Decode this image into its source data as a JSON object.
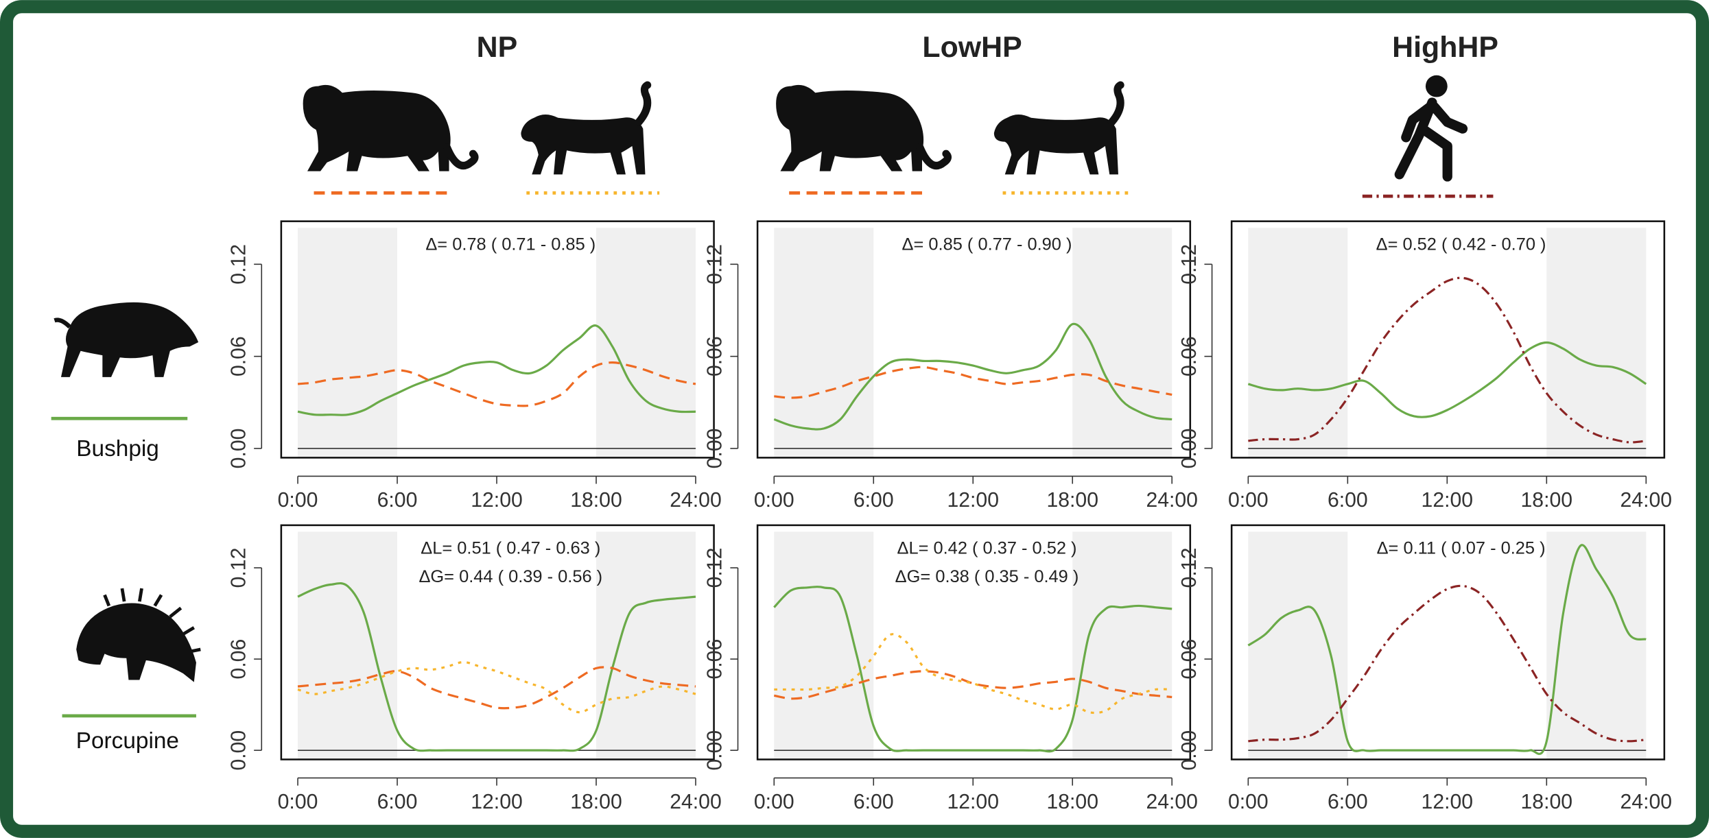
{
  "columns": [
    "NP",
    "LowHP",
    "HighHP"
  ],
  "rows": [
    "Bushpig",
    "Porcupine"
  ],
  "chart_data": [
    {
      "type": "line",
      "x": [
        0,
        1,
        2,
        3,
        4,
        5,
        6,
        7,
        8,
        9,
        10,
        11,
        12,
        13,
        14,
        15,
        16,
        17,
        18,
        19,
        20,
        21,
        22,
        23,
        24
      ],
      "xlim": [
        -1,
        25.1
      ],
      "ylim": [
        -0.006,
        0.148
      ],
      "xticks": [
        {
          "value": 0,
          "label": "0:00"
        },
        {
          "value": 6,
          "label": "6:00"
        },
        {
          "value": 12,
          "label": "12:00"
        },
        {
          "value": 18,
          "label": "18:00"
        },
        {
          "value": 24,
          "label": "24:00"
        }
      ],
      "yticks": [
        {
          "value": 0,
          "label": "0.00"
        },
        {
          "value": 0.06,
          "label": "0.06"
        },
        {
          "value": 0.12,
          "label": "0.12"
        }
      ],
      "shaded": [
        [
          0,
          6
        ],
        [
          18,
          24
        ]
      ],
      "annotations": [
        "Δ= 0.78 ( 0.71 - 0.85 )"
      ],
      "series": [
        {
          "color": "#6aaa48",
          "dash": "solid",
          "values": [
            0.024,
            0.022,
            0.022,
            0.022,
            0.025,
            0.031,
            0.036,
            0.041,
            0.045,
            0.049,
            0.054,
            0.056,
            0.056,
            0.051,
            0.049,
            0.054,
            0.064,
            0.072,
            0.08,
            0.066,
            0.044,
            0.031,
            0.026,
            0.024,
            0.024
          ]
        },
        {
          "color": "#ee6a22",
          "dash": "dashed",
          "values": [
            0.042,
            0.043,
            0.045,
            0.046,
            0.047,
            0.049,
            0.051,
            0.049,
            0.044,
            0.04,
            0.036,
            0.032,
            0.029,
            0.028,
            0.028,
            0.031,
            0.036,
            0.047,
            0.054,
            0.056,
            0.054,
            0.051,
            0.047,
            0.044,
            0.042
          ]
        }
      ]
    },
    {
      "type": "line",
      "x": [
        0,
        1,
        2,
        3,
        4,
        5,
        6,
        7,
        8,
        9,
        10,
        11,
        12,
        13,
        14,
        15,
        16,
        17,
        18,
        19,
        20,
        21,
        22,
        23,
        24
      ],
      "xlim": [
        -1,
        25.1
      ],
      "ylim": [
        -0.006,
        0.148
      ],
      "xticks": [
        {
          "value": 0,
          "label": "0:00"
        },
        {
          "value": 6,
          "label": "6:00"
        },
        {
          "value": 12,
          "label": "12:00"
        },
        {
          "value": 18,
          "label": "18:00"
        },
        {
          "value": 24,
          "label": "24:00"
        }
      ],
      "yticks": [
        {
          "value": 0,
          "label": "0.00"
        },
        {
          "value": 0.06,
          "label": "0.06"
        },
        {
          "value": 0.12,
          "label": "0.12"
        }
      ],
      "shaded": [
        [
          0,
          6
        ],
        [
          18,
          24
        ]
      ],
      "annotations": [
        "Δ= 0.85 ( 0.77 - 0.90 )"
      ],
      "series": [
        {
          "color": "#6aaa48",
          "dash": "solid",
          "values": [
            0.019,
            0.015,
            0.013,
            0.013,
            0.019,
            0.034,
            0.047,
            0.056,
            0.058,
            0.057,
            0.057,
            0.056,
            0.054,
            0.051,
            0.049,
            0.051,
            0.054,
            0.064,
            0.081,
            0.071,
            0.047,
            0.031,
            0.024,
            0.02,
            0.019
          ]
        },
        {
          "color": "#ee6a22",
          "dash": "dashed",
          "values": [
            0.034,
            0.033,
            0.034,
            0.037,
            0.04,
            0.044,
            0.047,
            0.05,
            0.052,
            0.053,
            0.051,
            0.049,
            0.046,
            0.044,
            0.042,
            0.043,
            0.044,
            0.046,
            0.048,
            0.048,
            0.044,
            0.041,
            0.039,
            0.037,
            0.035
          ]
        }
      ]
    },
    {
      "type": "line",
      "x": [
        0,
        1,
        2,
        3,
        4,
        5,
        6,
        7,
        8,
        9,
        10,
        11,
        12,
        13,
        14,
        15,
        16,
        17,
        18,
        19,
        20,
        21,
        22,
        23,
        24
      ],
      "xlim": [
        -1,
        25.1
      ],
      "ylim": [
        -0.006,
        0.148
      ],
      "xticks": [
        {
          "value": 0,
          "label": "0:00"
        },
        {
          "value": 6,
          "label": "6:00"
        },
        {
          "value": 12,
          "label": "12:00"
        },
        {
          "value": 18,
          "label": "18:00"
        },
        {
          "value": 24,
          "label": "24:00"
        }
      ],
      "yticks": [
        {
          "value": 0,
          "label": "0.00"
        },
        {
          "value": 0.06,
          "label": "0.06"
        },
        {
          "value": 0.12,
          "label": "0.12"
        }
      ],
      "shaded": [
        [
          0,
          6
        ],
        [
          18,
          24
        ]
      ],
      "annotations": [
        "Δ= 0.52 ( 0.42 - 0.70 )"
      ],
      "series": [
        {
          "color": "#6aaa48",
          "dash": "solid",
          "values": [
            0.042,
            0.039,
            0.038,
            0.039,
            0.038,
            0.039,
            0.042,
            0.044,
            0.036,
            0.026,
            0.021,
            0.021,
            0.025,
            0.031,
            0.038,
            0.046,
            0.056,
            0.065,
            0.069,
            0.065,
            0.058,
            0.054,
            0.053,
            0.049,
            0.042
          ]
        },
        {
          "color": "#8b2424",
          "dash": "dashdot",
          "values": [
            0.005,
            0.006,
            0.006,
            0.006,
            0.009,
            0.019,
            0.033,
            0.051,
            0.069,
            0.083,
            0.094,
            0.102,
            0.109,
            0.111,
            0.106,
            0.094,
            0.076,
            0.054,
            0.036,
            0.024,
            0.015,
            0.009,
            0.006,
            0.004,
            0.005
          ]
        }
      ]
    },
    {
      "type": "line",
      "x": [
        0,
        1,
        2,
        3,
        4,
        5,
        6,
        7,
        8,
        9,
        10,
        11,
        12,
        13,
        14,
        15,
        16,
        17,
        18,
        19,
        20,
        21,
        22,
        23,
        24
      ],
      "xlim": [
        -1,
        25.1
      ],
      "ylim": [
        -0.006,
        0.148
      ],
      "xticks": [
        {
          "value": 0,
          "label": "0:00"
        },
        {
          "value": 6,
          "label": "6:00"
        },
        {
          "value": 12,
          "label": "12:00"
        },
        {
          "value": 18,
          "label": "18:00"
        },
        {
          "value": 24,
          "label": "24:00"
        }
      ],
      "yticks": [
        {
          "value": 0,
          "label": "0.00"
        },
        {
          "value": 0.06,
          "label": "0.06"
        },
        {
          "value": 0.12,
          "label": "0.12"
        }
      ],
      "shaded": [
        [
          0,
          6
        ],
        [
          18,
          24
        ]
      ],
      "annotations": [
        "ΔL= 0.51 ( 0.47 - 0.63 )",
        "ΔG= 0.44 ( 0.39 - 0.56 )"
      ],
      "series": [
        {
          "color": "#6aaa48",
          "dash": "solid",
          "values": [
            0.101,
            0.106,
            0.109,
            0.108,
            0.09,
            0.048,
            0.013,
            0.001,
            0,
            0,
            0,
            0,
            0,
            0,
            0,
            0,
            0,
            0.001,
            0.013,
            0.055,
            0.09,
            0.097,
            0.099,
            0.1,
            0.101
          ]
        },
        {
          "color": "#ee6a22",
          "dash": "dashed",
          "values": [
            0.042,
            0.043,
            0.044,
            0.045,
            0.047,
            0.05,
            0.052,
            0.048,
            0.041,
            0.037,
            0.034,
            0.031,
            0.028,
            0.028,
            0.03,
            0.035,
            0.041,
            0.048,
            0.054,
            0.054,
            0.049,
            0.046,
            0.044,
            0.043,
            0.042
          ]
        },
        {
          "color": "#f7b52c",
          "dash": "dotted",
          "values": [
            0.04,
            0.037,
            0.039,
            0.041,
            0.044,
            0.048,
            0.052,
            0.054,
            0.053,
            0.055,
            0.058,
            0.055,
            0.052,
            0.048,
            0.044,
            0.04,
            0.03,
            0.025,
            0.03,
            0.034,
            0.035,
            0.039,
            0.042,
            0.04,
            0.037
          ]
        }
      ]
    },
    {
      "type": "line",
      "x": [
        0,
        1,
        2,
        3,
        4,
        5,
        6,
        7,
        8,
        9,
        10,
        11,
        12,
        13,
        14,
        15,
        16,
        17,
        18,
        19,
        20,
        21,
        22,
        23,
        24
      ],
      "xlim": [
        -1,
        25.1
      ],
      "ylim": [
        -0.006,
        0.148
      ],
      "xticks": [
        {
          "value": 0,
          "label": "0:00"
        },
        {
          "value": 6,
          "label": "6:00"
        },
        {
          "value": 12,
          "label": "12:00"
        },
        {
          "value": 18,
          "label": "18:00"
        },
        {
          "value": 24,
          "label": "24:00"
        }
      ],
      "yticks": [
        {
          "value": 0,
          "label": "0.00"
        },
        {
          "value": 0.06,
          "label": "0.06"
        },
        {
          "value": 0.12,
          "label": "0.12"
        }
      ],
      "shaded": [
        [
          0,
          6
        ],
        [
          18,
          24
        ]
      ],
      "annotations": [
        "ΔL= 0.42 ( 0.37 - 0.52 )",
        "ΔG= 0.38 ( 0.35 - 0.49 )"
      ],
      "series": [
        {
          "color": "#6aaa48",
          "dash": "solid",
          "values": [
            0.094,
            0.105,
            0.107,
            0.107,
            0.101,
            0.062,
            0.016,
            0.001,
            0,
            0,
            0,
            0,
            0,
            0,
            0,
            0,
            0,
            0.001,
            0.02,
            0.076,
            0.093,
            0.094,
            0.095,
            0.094,
            0.093
          ]
        },
        {
          "color": "#ee6a22",
          "dash": "dashed",
          "values": [
            0.036,
            0.034,
            0.035,
            0.038,
            0.041,
            0.044,
            0.047,
            0.049,
            0.051,
            0.052,
            0.051,
            0.048,
            0.044,
            0.042,
            0.041,
            0.042,
            0.044,
            0.045,
            0.047,
            0.045,
            0.041,
            0.039,
            0.037,
            0.036,
            0.035
          ]
        },
        {
          "color": "#f7b52c",
          "dash": "dotted",
          "values": [
            0.04,
            0.04,
            0.04,
            0.041,
            0.042,
            0.049,
            0.062,
            0.076,
            0.071,
            0.055,
            0.048,
            0.046,
            0.044,
            0.04,
            0.037,
            0.033,
            0.03,
            0.027,
            0.03,
            0.025,
            0.026,
            0.034,
            0.037,
            0.04,
            0.04
          ]
        }
      ]
    },
    {
      "type": "line",
      "x": [
        0,
        1,
        2,
        3,
        4,
        5,
        6,
        7,
        8,
        9,
        10,
        11,
        12,
        13,
        14,
        15,
        16,
        17,
        18,
        19,
        20,
        21,
        22,
        23,
        24
      ],
      "xlim": [
        -1,
        25.1
      ],
      "ylim": [
        -0.006,
        0.148
      ],
      "xticks": [
        {
          "value": 0,
          "label": "0:00"
        },
        {
          "value": 6,
          "label": "6:00"
        },
        {
          "value": 12,
          "label": "12:00"
        },
        {
          "value": 18,
          "label": "18:00"
        },
        {
          "value": 24,
          "label": "24:00"
        }
      ],
      "yticks": [
        {
          "value": 0,
          "label": "0.00"
        },
        {
          "value": 0.06,
          "label": "0.06"
        },
        {
          "value": 0.12,
          "label": "0.12"
        }
      ],
      "shaded": [
        [
          0,
          6
        ],
        [
          18,
          24
        ]
      ],
      "annotations": [
        "Δ= 0.11 ( 0.07 - 0.25 )"
      ],
      "series": [
        {
          "color": "#6aaa48",
          "dash": "solid",
          "values": [
            0.069,
            0.076,
            0.087,
            0.092,
            0.092,
            0.062,
            0.006,
            0,
            0,
            0,
            0,
            0,
            0,
            0,
            0,
            0,
            0,
            0,
            0.006,
            0.09,
            0.134,
            0.119,
            0.101,
            0.076,
            0.073
          ]
        },
        {
          "color": "#8b2424",
          "dash": "dashdot",
          "values": [
            0.006,
            0.007,
            0.007,
            0.008,
            0.011,
            0.02,
            0.034,
            0.049,
            0.066,
            0.08,
            0.09,
            0.099,
            0.106,
            0.108,
            0.103,
            0.09,
            0.073,
            0.055,
            0.037,
            0.025,
            0.018,
            0.011,
            0.007,
            0.006,
            0.007
          ]
        }
      ]
    }
  ]
}
